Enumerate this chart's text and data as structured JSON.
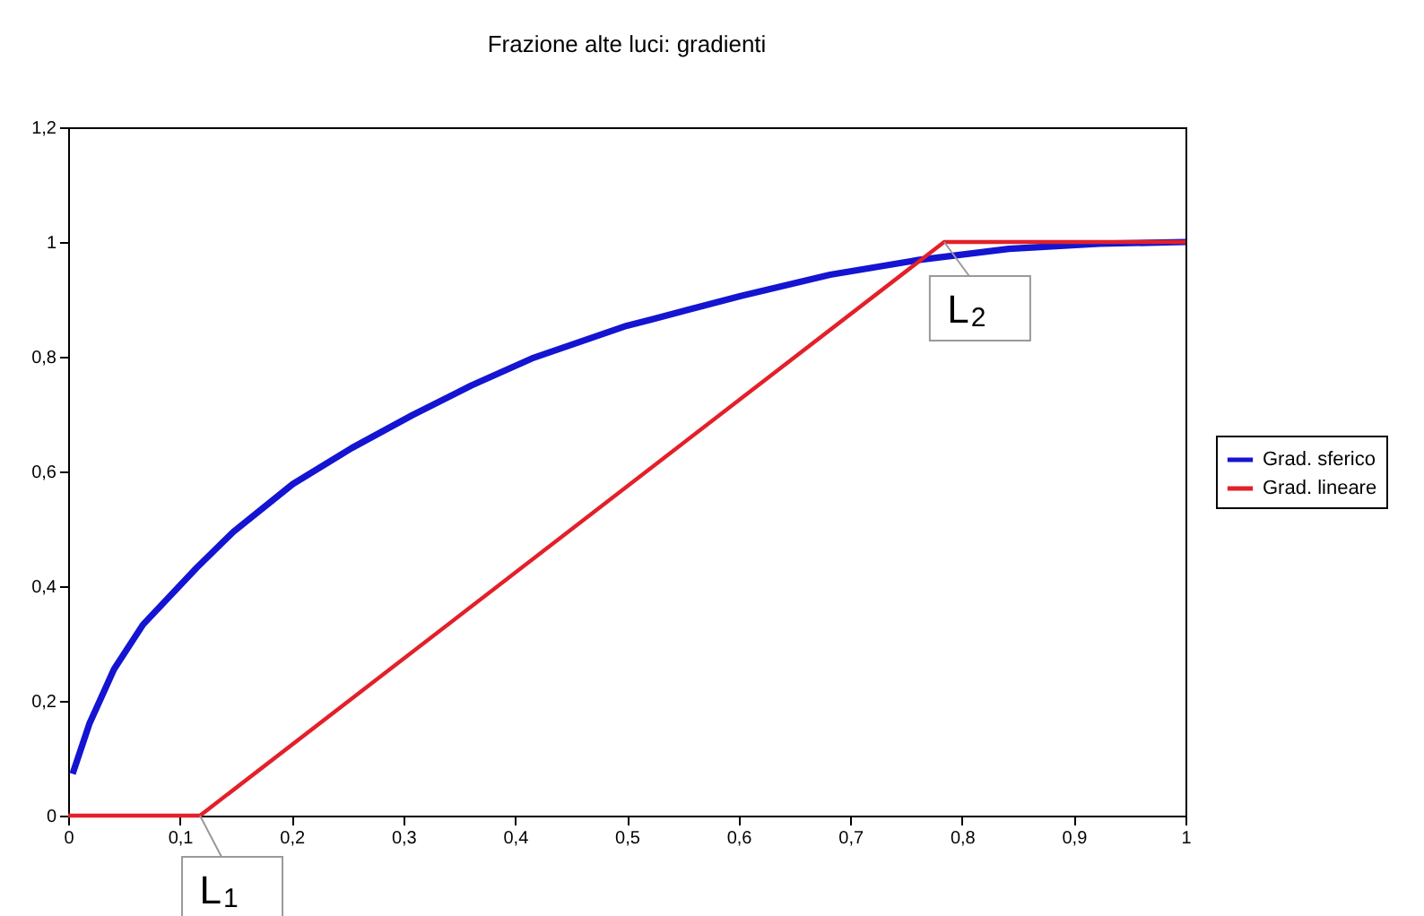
{
  "chart_data": {
    "type": "line",
    "title": "Frazione alte luci: gradienti",
    "xlim": [
      0,
      1
    ],
    "ylim": [
      0,
      1.2
    ],
    "xticks": [
      0,
      {
        "value": 0.1,
        "label": "0,1"
      },
      {
        "value": 0.2,
        "label": "0,2"
      },
      {
        "value": 0.3,
        "label": "0,3"
      },
      {
        "value": 0.4,
        "label": "0,4"
      },
      {
        "value": 0.5,
        "label": "0,5"
      },
      {
        "value": 0.6,
        "label": "0,6"
      },
      {
        "value": 0.7,
        "label": "0,7"
      },
      {
        "value": 0.8,
        "label": "0,8"
      },
      {
        "value": 0.9,
        "label": "0,9"
      },
      1
    ],
    "yticks": [
      0,
      {
        "value": 0.2,
        "label": "0,2"
      },
      {
        "value": 0.4,
        "label": "0,4"
      },
      {
        "value": 0.6,
        "label": "0,6"
      },
      {
        "value": 0.8,
        "label": "0,8"
      },
      1,
      {
        "value": 1.2,
        "label": "1,2"
      }
    ],
    "grid": false,
    "legend": "right",
    "series": [
      {
        "name": "Grad. sferico",
        "color": "#1414d2",
        "x": [
          0.004,
          0.019,
          0.041,
          0.067,
          0.115,
          0.148,
          0.201,
          0.254,
          0.308,
          0.361,
          0.415,
          0.5,
          0.522,
          0.602,
          0.682,
          0.762,
          0.842,
          0.923,
          1
        ],
        "values": [
          0.073,
          0.16,
          0.255,
          0.333,
          0.432,
          0.495,
          0.578,
          0.641,
          0.698,
          0.75,
          0.797,
          0.854,
          0.865,
          0.906,
          0.943,
          0.969,
          0.988,
          0.997,
          1.0
        ]
      },
      {
        "name": "Grad. lineare",
        "color": "#e3202a",
        "x": [
          0,
          0.118,
          0.784,
          1
        ],
        "values": [
          0,
          0,
          1,
          1
        ]
      }
    ],
    "annotations": [
      {
        "text": "L$_{1}$",
        "x": 0.118,
        "y": 0
      },
      {
        "text": "L$_{2}$",
        "x": 0.784,
        "y": 1
      }
    ]
  }
}
